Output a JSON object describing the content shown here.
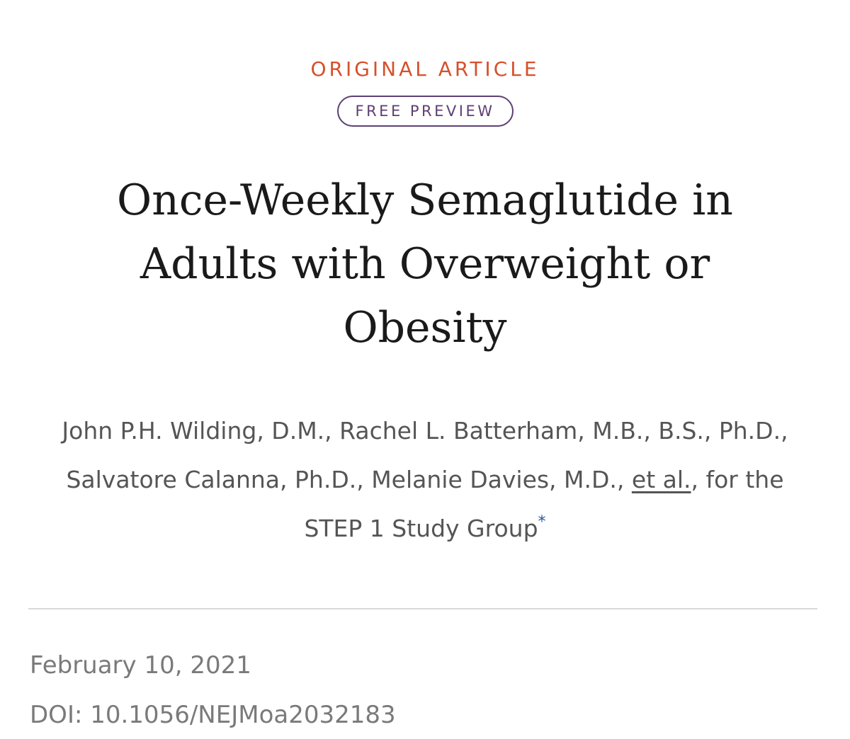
{
  "article": {
    "type_label": "ORIGINAL ARTICLE",
    "badge_label": "FREE PREVIEW",
    "title": "Once-Weekly Semaglutide in Adults with Overweight or Obesity",
    "authors_text": "John P.H. Wilding, D.M., Rachel L. Batterham, M.B., B.S., Ph.D., Salvatore Calanna, Ph.D., Melanie Davies, M.D., ",
    "et_al_label": "et al.",
    "group_text": ", for the STEP 1 Study Group",
    "footnote_marker": "*",
    "date": "February 10, 2021",
    "doi": "DOI: 10.1056/NEJMoa2032183"
  },
  "colors": {
    "kicker": "#d6502b",
    "badge": "#5e3f73",
    "title": "#1a1a1a",
    "authors": "#555555",
    "meta": "#7a7a7a",
    "footnote": "#2a5599"
  }
}
